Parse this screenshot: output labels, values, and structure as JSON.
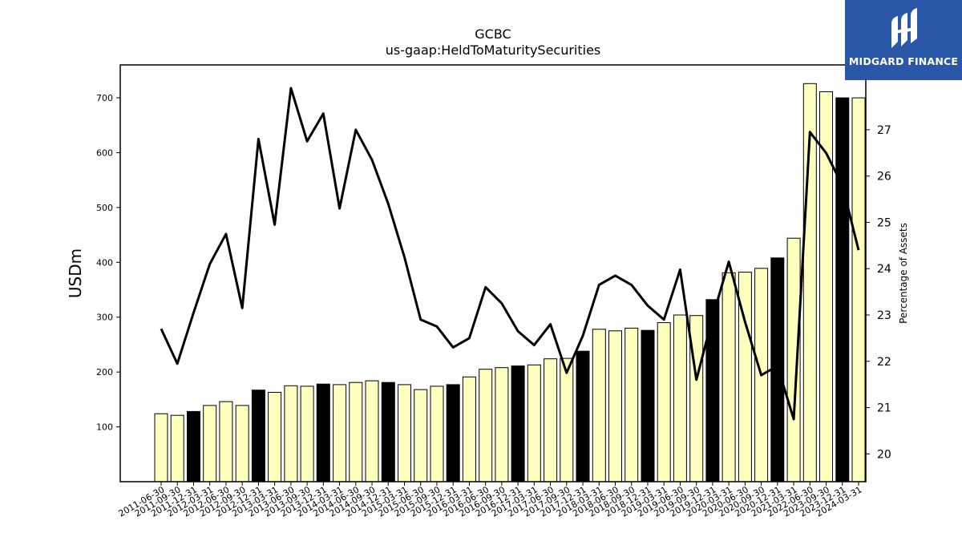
{
  "chart_data": {
    "type": "bar",
    "title": "GCBC",
    "subtitle": "us-gaap:HeldToMaturitySecurities",
    "ylabel": "USDm",
    "y2label": "Percentage of Assets",
    "ylim": [
      0,
      760
    ],
    "y2lim": [
      19.4,
      28.4
    ],
    "yticks": [
      100,
      200,
      300,
      400,
      500,
      600,
      700
    ],
    "y2ticks": [
      20,
      21,
      22,
      23,
      24,
      25,
      26,
      27
    ],
    "categories": [
      "2011-06-30",
      "2011-09-30",
      "2011-12-31",
      "2012-03-31",
      "2012-06-30",
      "2012-09-30",
      "2012-12-31",
      "2013-03-31",
      "2013-06-30",
      "2013-09-30",
      "2013-12-31",
      "2014-03-31",
      "2014-06-30",
      "2014-09-30",
      "2014-12-31",
      "2015-03-31",
      "2015-06-30",
      "2015-09-30",
      "2015-12-31",
      "2016-03-31",
      "2016-06-30",
      "2016-09-30",
      "2016-12-31",
      "2017-03-31",
      "2017-06-30",
      "2017-09-30",
      "2017-12-31",
      "2018-03-31",
      "2018-06-30",
      "2018-09-30",
      "2018-12-31",
      "2019-03-31",
      "2019-06-30",
      "2019-09-30",
      "2019-12-31",
      "2020-03-31",
      "2020-06-30",
      "2020-09-30",
      "2020-12-31",
      "2021-03-31",
      "2022-06-30",
      "2023-09-30",
      "2023-12-31",
      "2024-03-31"
    ],
    "series": [
      {
        "values": [
          124,
          121,
          128,
          139,
          146,
          139,
          167,
          163,
          175,
          174,
          178,
          177,
          181,
          184,
          181,
          177,
          168,
          174,
          177,
          191,
          205,
          208,
          211,
          213,
          224,
          225,
          238,
          278,
          275,
          280,
          276,
          290,
          304,
          303,
          332,
          381,
          382,
          389,
          408,
          444,
          726,
          711,
          700,
          700
        ],
        "year_end_flags": [
          0,
          0,
          1,
          0,
          0,
          0,
          1,
          0,
          0,
          0,
          1,
          0,
          0,
          0,
          1,
          0,
          0,
          0,
          1,
          0,
          0,
          0,
          1,
          0,
          0,
          0,
          1,
          0,
          0,
          0,
          1,
          0,
          0,
          0,
          1,
          0,
          0,
          0,
          1,
          0,
          0,
          0,
          1,
          0
        ]
      },
      {
        "values": [
          22.7,
          21.95,
          23.05,
          24.1,
          24.75,
          23.15,
          26.8,
          24.95,
          27.9,
          26.75,
          27.35,
          25.3,
          27.0,
          26.35,
          25.4,
          24.25,
          22.9,
          22.75,
          22.3,
          22.5,
          23.6,
          23.25,
          22.65,
          22.35,
          22.8,
          21.75,
          22.55,
          23.65,
          23.85,
          23.65,
          23.2,
          22.9,
          23.98,
          21.6,
          22.95,
          24.15,
          22.85,
          21.7,
          21.9,
          20.75,
          26.95,
          26.5,
          25.8,
          24.4
        ]
      }
    ],
    "colors": {
      "bar_fill": "#ffffc0",
      "bar_fill_year_end": "#000000",
      "bar_stroke": "#000000",
      "line": "#000000"
    }
  },
  "logo": {
    "text": "MIDGARD FINANCE",
    "bg": "#2b57a8"
  }
}
